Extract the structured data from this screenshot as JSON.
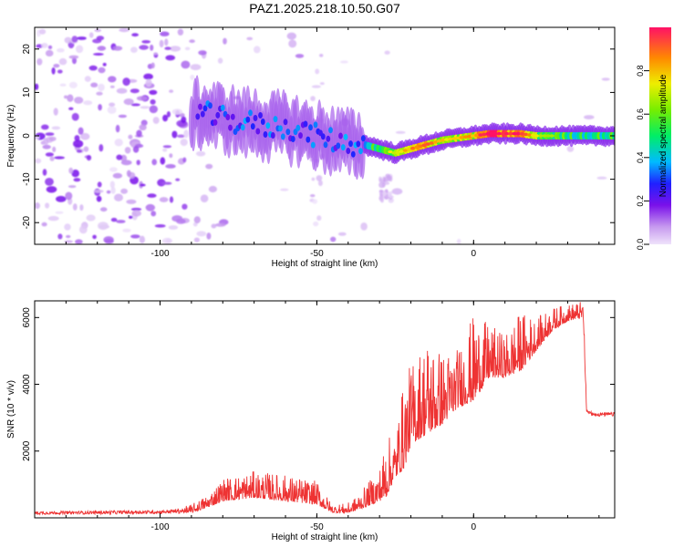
{
  "title": "PAZ1.2025.218.10.50.G07",
  "chart_data": [
    {
      "type": "heatmap",
      "title": "PAZ1.2025.218.10.50.G07",
      "xlabel": "Height of straight line (km)",
      "ylabel": "Frequency (Hz)",
      "xlim": [
        -140,
        45
      ],
      "ylim": [
        -25,
        25
      ],
      "x_ticks": [
        -100,
        -50,
        0
      ],
      "x_tick_labels": [
        "-100",
        "-50",
        "0"
      ],
      "y_ticks": [
        -20,
        -10,
        0,
        10,
        20
      ],
      "y_tick_labels": [
        "-20",
        "-10",
        "0",
        "10",
        "20"
      ],
      "colorbar": {
        "label": "Normalized spectral amplitude",
        "range": [
          0,
          1
        ],
        "ticks": [
          0.0,
          0.2,
          0.4,
          0.6,
          0.8
        ],
        "tick_labels": [
          "0.0",
          "0.2",
          "0.4",
          "0.6",
          "0.8"
        ],
        "colormap": "rainbow-lightpurple-to-red"
      },
      "ridge": {
        "description_points_x": [
          -88,
          -85,
          -80,
          -75,
          -70,
          -65,
          -60,
          -55,
          -50,
          -45,
          -40,
          -35,
          -30,
          -25,
          -20,
          -15,
          -10,
          -5,
          0,
          5,
          10,
          15,
          20,
          25,
          30,
          35,
          40,
          45
        ],
        "frequency": [
          5,
          5,
          4,
          3,
          3,
          2,
          2,
          1,
          0,
          -1,
          -2,
          -2,
          -3,
          -4,
          -3,
          -2,
          -1,
          -0.5,
          0,
          0.5,
          0.5,
          0.5,
          0,
          0,
          0,
          0,
          0,
          0
        ],
        "amplitude": [
          0.3,
          0.35,
          0.3,
          0.3,
          0.3,
          0.3,
          0.3,
          0.3,
          0.3,
          0.25,
          0.3,
          0.45,
          0.5,
          0.6,
          0.7,
          0.8,
          0.65,
          0.65,
          0.7,
          0.95,
          0.85,
          0.85,
          0.6,
          0.55,
          0.5,
          0.5,
          0.5,
          0.5
        ]
      },
      "grid": false
    },
    {
      "type": "line",
      "xlabel": "Height of straight line (km)",
      "ylabel": "SNR (10 * v/v)",
      "xlim": [
        -140,
        45
      ],
      "ylim": [
        0,
        6500
      ],
      "x_ticks": [
        -100,
        -50,
        0
      ],
      "x_tick_labels": [
        "-100",
        "-50",
        "0"
      ],
      "y_ticks": [
        2000,
        4000,
        6000
      ],
      "y_tick_labels": [
        "2000",
        "4000",
        "6000"
      ],
      "color": "#ee3333",
      "envelope": {
        "x": [
          -140,
          -100,
          -90,
          -85,
          -80,
          -70,
          -60,
          -50,
          -45,
          -40,
          -38,
          -35,
          -30,
          -28,
          -25,
          -22,
          -20,
          -15,
          -10,
          -5,
          0,
          5,
          10,
          15,
          20,
          25,
          30,
          35,
          36,
          38,
          40,
          45
        ],
        "baseline": [
          100,
          120,
          150,
          300,
          500,
          600,
          500,
          400,
          150,
          150,
          200,
          300,
          500,
          600,
          1200,
          1500,
          2200,
          2500,
          2800,
          3300,
          3500,
          4200,
          4200,
          4400,
          5000,
          5600,
          5900,
          6000,
          3200,
          3100,
          3100,
          3100
        ],
        "peak": [
          250,
          300,
          400,
          700,
          1200,
          1400,
          1300,
          1100,
          400,
          450,
          600,
          900,
          1500,
          2400,
          2500,
          4300,
          4600,
          5500,
          5000,
          5100,
          6100,
          5800,
          5500,
          6200,
          6000,
          6300,
          6400,
          6500,
          3400,
          3300,
          3250,
          3250
        ]
      },
      "grid": false
    }
  ]
}
